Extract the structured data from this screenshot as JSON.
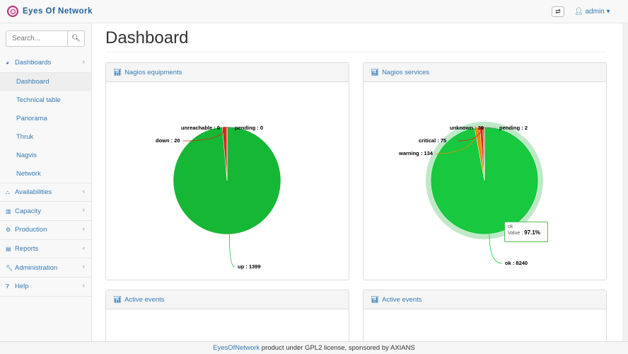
{
  "app": {
    "title": "Eyes Of Network",
    "user": "admin"
  },
  "search": {
    "placeholder": "Search..."
  },
  "sidebar": {
    "items": [
      {
        "label": "Dashboards",
        "icon": "tachometer-icon",
        "children": [
          "Dashboard",
          "Technical table",
          "Panorama",
          "Thruk",
          "Nagvis",
          "Network"
        ]
      },
      {
        "label": "Availabilities",
        "icon": "sitemap-icon"
      },
      {
        "label": "Capacity",
        "icon": "bar-chart-icon"
      },
      {
        "label": "Production",
        "icon": "cogs-icon"
      },
      {
        "label": "Reports",
        "icon": "file-icon"
      },
      {
        "label": "Administration",
        "icon": "wrench-icon"
      },
      {
        "label": "Help",
        "icon": "question-circle-icon"
      }
    ]
  },
  "page": {
    "title": "Dashboard"
  },
  "panels": [
    "Nagios equipments",
    "Nagios services",
    "Active events",
    "Active events"
  ],
  "chart_data": [
    {
      "type": "pie",
      "title": "Nagios equipments",
      "slices": [
        {
          "name": "up",
          "value": 1399,
          "color": "#16b734"
        },
        {
          "name": "down",
          "value": 20,
          "color": "#d9251c"
        },
        {
          "name": "unreachable",
          "value": 0,
          "color": "#e04a2a"
        },
        {
          "name": "pending",
          "value": 0,
          "color": "#a070b0"
        }
      ]
    },
    {
      "type": "pie",
      "title": "Nagios services",
      "slices": [
        {
          "name": "ok",
          "value": 8240,
          "color": "#18c83e"
        },
        {
          "name": "warning",
          "value": 134,
          "color": "#e58a0c"
        },
        {
          "name": "critical",
          "value": 75,
          "color": "#d9251c"
        },
        {
          "name": "unknown",
          "value": 39,
          "color": "#e8332a"
        },
        {
          "name": "pending",
          "value": 2,
          "color": "#a070b0"
        }
      ],
      "tooltip": {
        "name": "ok",
        "label": "Value :",
        "value": "97.1%"
      }
    }
  ],
  "footer": {
    "link": "EyesOfNetwork",
    "text": " product under GPL2 license, sponsored by AXIANS"
  }
}
